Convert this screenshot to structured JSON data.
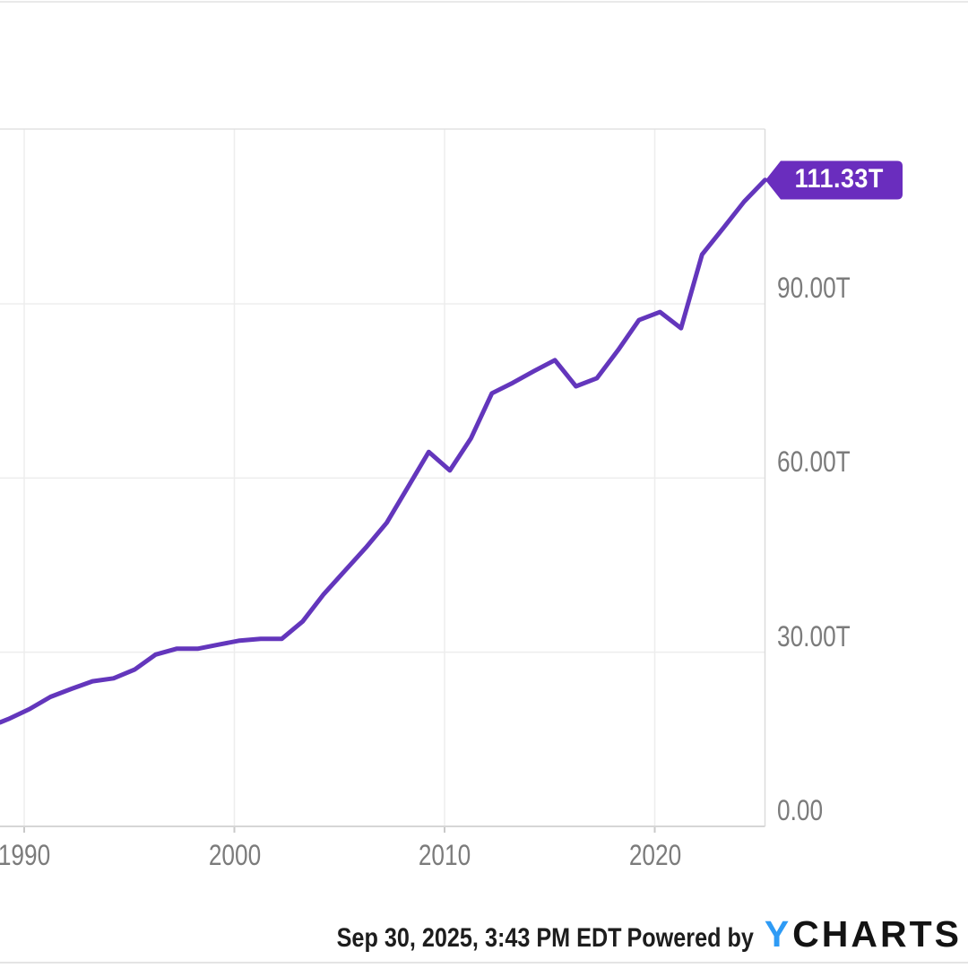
{
  "chart_data": {
    "type": "line",
    "title": "",
    "x": [
      1988.6,
      1989,
      1990,
      1991,
      1992,
      1993,
      1994,
      1995,
      1996,
      1997,
      1998,
      1999,
      2000,
      2001,
      2002,
      2003,
      2004,
      2005,
      2006,
      2007,
      2008,
      2009,
      2010,
      2011,
      2012,
      2013,
      2014,
      2015,
      2016,
      2017,
      2018,
      2019,
      2020,
      2021,
      2022,
      2023,
      2024,
      2025
    ],
    "values": [
      17.9,
      18.5,
      20.2,
      22.3,
      23.7,
      25.0,
      25.5,
      27.0,
      29.6,
      30.6,
      30.6,
      31.3,
      32.0,
      32.3,
      32.3,
      35.3,
      40.0,
      44.0,
      48.0,
      52.3,
      58.4,
      64.5,
      61.3,
      66.8,
      74.6,
      76.4,
      78.4,
      80.3,
      75.8,
      77.2,
      82.0,
      87.2,
      88.6,
      85.8,
      98.5,
      103.0,
      107.6,
      111.33
    ],
    "unit": "T",
    "last_value_label": "111.33T",
    "x_ticks": [
      {
        "year": 1990,
        "label": "1990"
      },
      {
        "year": 2000,
        "label": "2000"
      },
      {
        "year": 2010,
        "label": "2010"
      },
      {
        "year": 2020,
        "label": "2020"
      }
    ],
    "y_ticks": [
      {
        "value": 0,
        "label": "0.00"
      },
      {
        "value": 30,
        "label": "30.00T"
      },
      {
        "value": 60,
        "label": "60.00T"
      },
      {
        "value": 90,
        "label": "90.00T"
      }
    ],
    "ylim": [
      0,
      120
    ],
    "xlim": [
      1988.85,
      2025.55
    ],
    "grid": true,
    "legend_position": "none",
    "colors": {
      "line": "#6336bc",
      "badge": "#6a2dbe",
      "grid": "#ededed",
      "plot_border": "#dcdcdc",
      "bottom_axis": "#d6d6d6",
      "tick_mark": "#c9c9c9",
      "axis_text": "#7b7b7b",
      "logo_blue": "#2e9bf5",
      "logo_dark": "#131313"
    }
  },
  "footer": {
    "timestamp": "Sep 30, 2025, 3:43 PM EDT",
    "powered_by": "Powered by",
    "logo_y": "Y",
    "logo_charts": "CHARTS"
  }
}
